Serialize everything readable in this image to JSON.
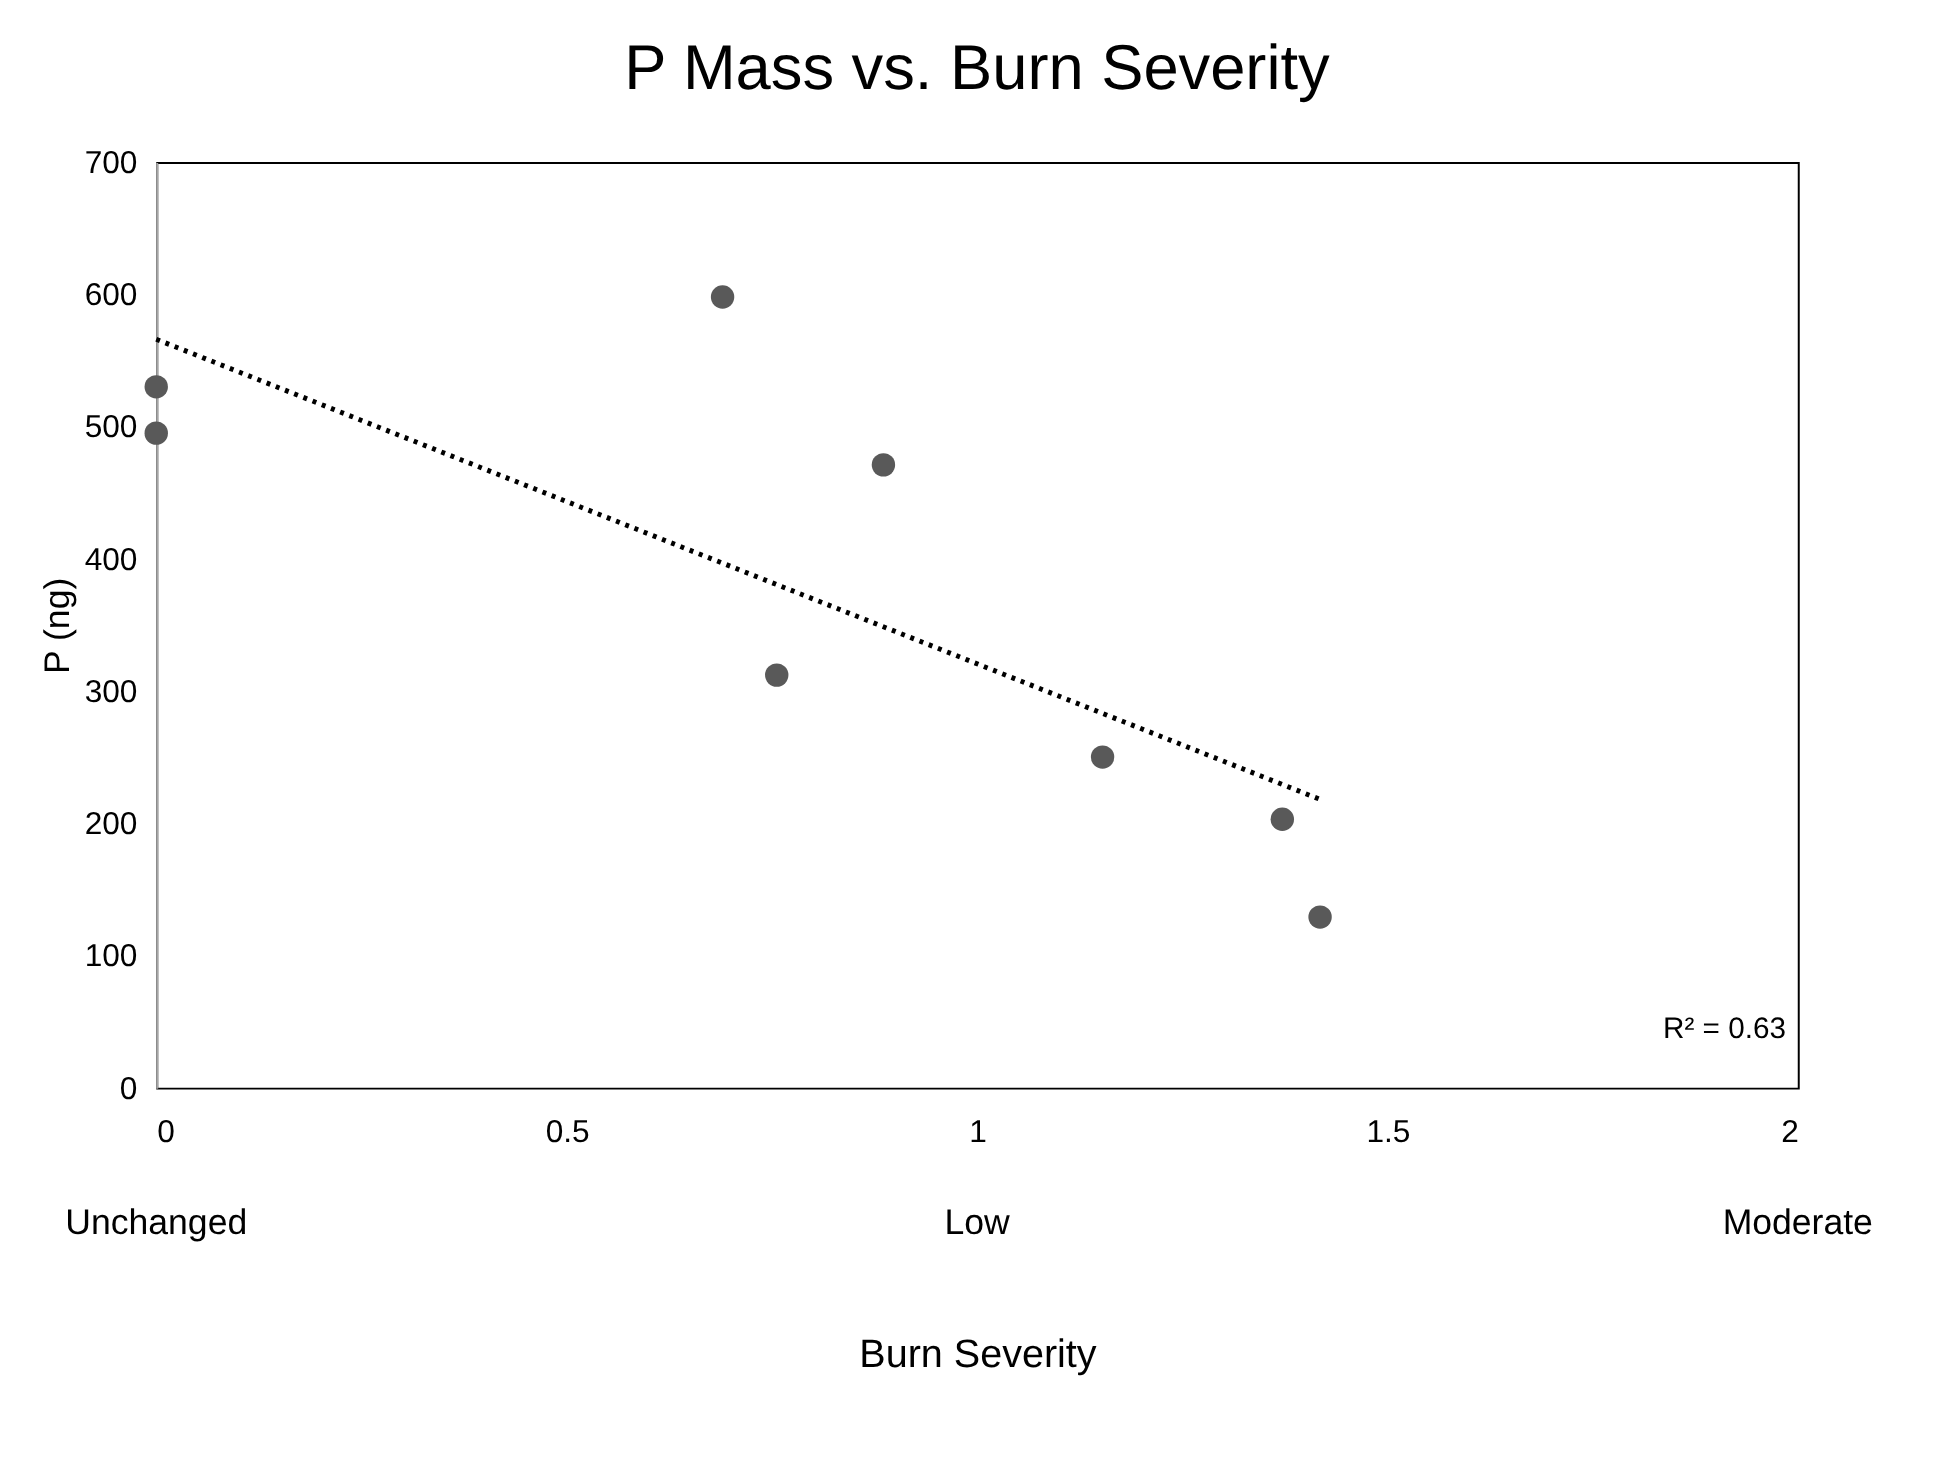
{
  "chart_data": {
    "type": "scatter",
    "title": "P Mass vs. Burn Severity",
    "xlabel": "Burn Severity",
    "ylabel": "P (ng)",
    "series": [
      {
        "color": "#595959",
        "x": [
          0,
          0,
          0.69,
          0.756,
          0.886,
          1.153,
          1.372,
          1.418
        ],
        "values": [
          530,
          495,
          598,
          312,
          471,
          250,
          203,
          129
        ],
        "marker": "circle"
      },
      {
        "type": "line",
        "color": "#000000",
        "x": [
          0,
          1.418
        ],
        "values": [
          566,
          218
        ],
        "line_style": "dotted"
      }
    ],
    "xlim": [
      0,
      2
    ],
    "xticks": [
      0,
      0.5,
      1,
      1.5,
      2
    ],
    "ylim": [
      0,
      700
    ],
    "yticks": [
      0,
      100,
      200,
      300,
      400,
      500,
      600,
      700
    ],
    "grid": false,
    "annotations": [
      "R² = 0.63",
      "Unchanged",
      "Low",
      "Moderate"
    ]
  }
}
